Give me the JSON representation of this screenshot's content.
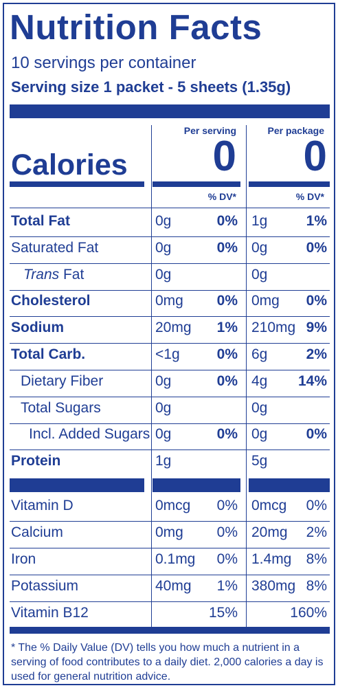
{
  "title": "Nutrition Facts",
  "servings": "10 servings per container",
  "serving_size": "Serving size 1 packet - 5 sheets (1.35g)",
  "calories_label": "Calories",
  "per_serving_label": "Per serving",
  "per_package_label": "Per package",
  "calories_serving": "0",
  "calories_package": "0",
  "dv_label": "% DV*",
  "rows": [
    {
      "name": "Total Fat",
      "s_amt": "0g",
      "s_dv": "0%",
      "p_amt": "1g",
      "p_dv": "1%"
    },
    {
      "name": "Saturated Fat",
      "s_amt": "0g",
      "s_dv": "0%",
      "p_amt": "0g",
      "p_dv": "0%"
    },
    {
      "name_italic": "Trans",
      "name": " Fat",
      "s_amt": "0g",
      "s_dv": "",
      "p_amt": "0g",
      "p_dv": ""
    },
    {
      "name": "Cholesterol",
      "s_amt": "0mg",
      "s_dv": "0%",
      "p_amt": "0mg",
      "p_dv": "0%"
    },
    {
      "name": "Sodium",
      "s_amt": "20mg",
      "s_dv": "1%",
      "p_amt": "210mg",
      "p_dv": "9%"
    },
    {
      "name": "Total Carb.",
      "s_amt": "<1g",
      "s_dv": "0%",
      "p_amt": "6g",
      "p_dv": "2%"
    },
    {
      "name": "Dietary Fiber",
      "s_amt": "0g",
      "s_dv": "0%",
      "p_amt": "4g",
      "p_dv": "14%"
    },
    {
      "name": "Total Sugars",
      "s_amt": "0g",
      "s_dv": "",
      "p_amt": "0g",
      "p_dv": ""
    },
    {
      "name": "Incl. Added Sugars",
      "s_amt": "0g",
      "s_dv": "0%",
      "p_amt": "0g",
      "p_dv": "0%"
    },
    {
      "name": "Protein",
      "s_amt": "1g",
      "s_dv": "",
      "p_amt": "5g",
      "p_dv": ""
    }
  ],
  "vitamins": [
    {
      "name": "Vitamin D",
      "s_amt": "0mcg",
      "s_dv": "0%",
      "p_amt": "0mcg",
      "p_dv": "0%"
    },
    {
      "name": "Calcium",
      "s_amt": "0mg",
      "s_dv": "0%",
      "p_amt": "20mg",
      "p_dv": "2%"
    },
    {
      "name": "Iron",
      "s_amt": "0.1mg",
      "s_dv": "0%",
      "p_amt": "1.4mg",
      "p_dv": "8%"
    },
    {
      "name": "Potassium",
      "s_amt": "40mg",
      "s_dv": "1%",
      "p_amt": "380mg",
      "p_dv": "8%"
    },
    {
      "name": "Vitamin B12",
      "s_amt": "",
      "s_dv": "15%",
      "p_amt": "",
      "p_dv": "160%"
    }
  ],
  "footnote": "* The % Daily Value (DV) tells you how much a nutrient in a serving of food contributes to a daily diet. 2,000 calories a day is used for general nutrition advice.",
  "colors": {
    "ink": "#1f3d94"
  }
}
